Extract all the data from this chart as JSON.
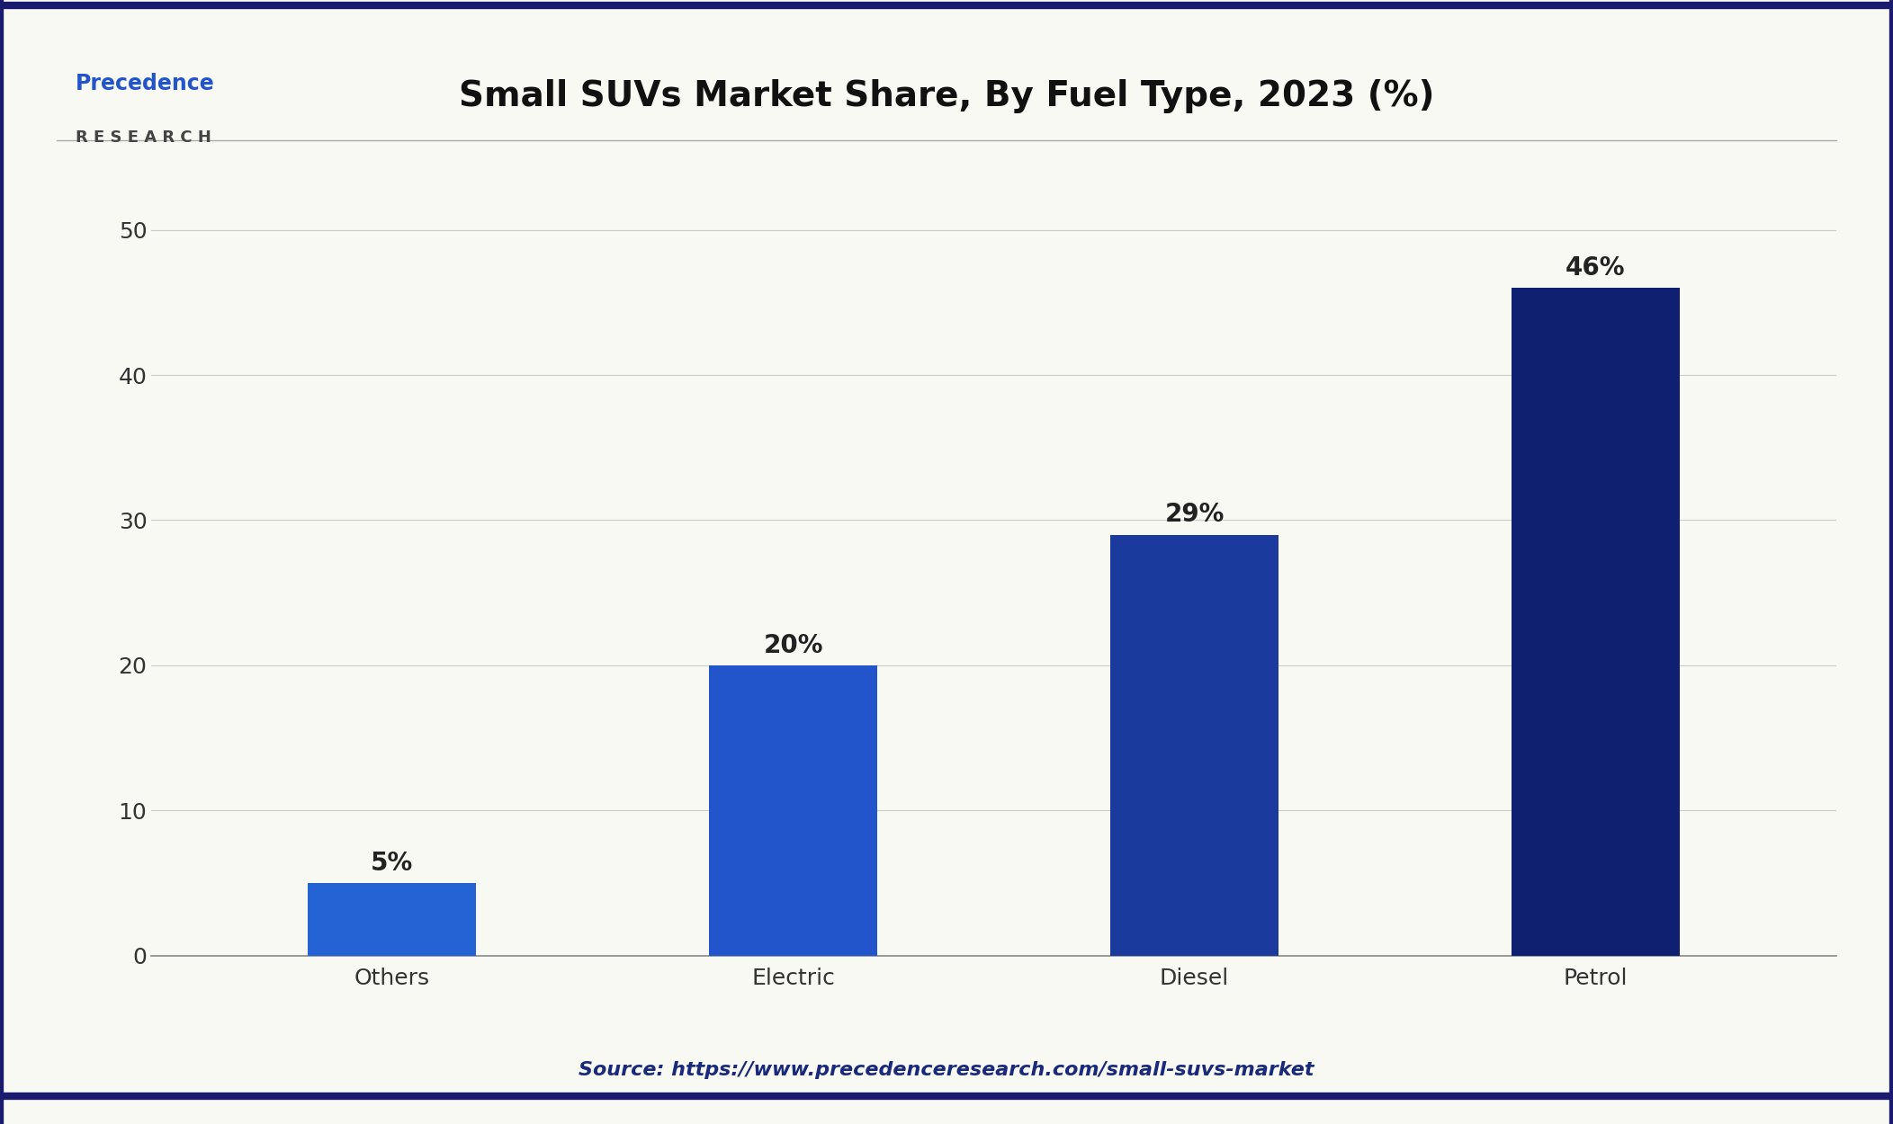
{
  "title": "Small SUVs Market Share, By Fuel Type, 2023 (%)",
  "categories": [
    "Others",
    "Electric",
    "Diesel",
    "Petrol"
  ],
  "values": [
    5,
    20,
    29,
    46
  ],
  "labels": [
    "5%",
    "20%",
    "29%",
    "46%"
  ],
  "bar_colors": [
    "#2563d4",
    "#2255cc",
    "#1a3a9e",
    "#0f2070"
  ],
  "ylim": [
    0,
    55
  ],
  "yticks": [
    0,
    10,
    20,
    30,
    40,
    50
  ],
  "background_color": "#f9f9f4",
  "title_fontsize": 28,
  "tick_fontsize": 18,
  "label_fontsize": 20,
  "source_text": "Source: https://www.precedenceresearch.com/small-suvs-market",
  "source_fontsize": 16,
  "border_color": "#1a1a6e",
  "logo_precedence_color": "#2255cc",
  "logo_research_color": "#444444"
}
